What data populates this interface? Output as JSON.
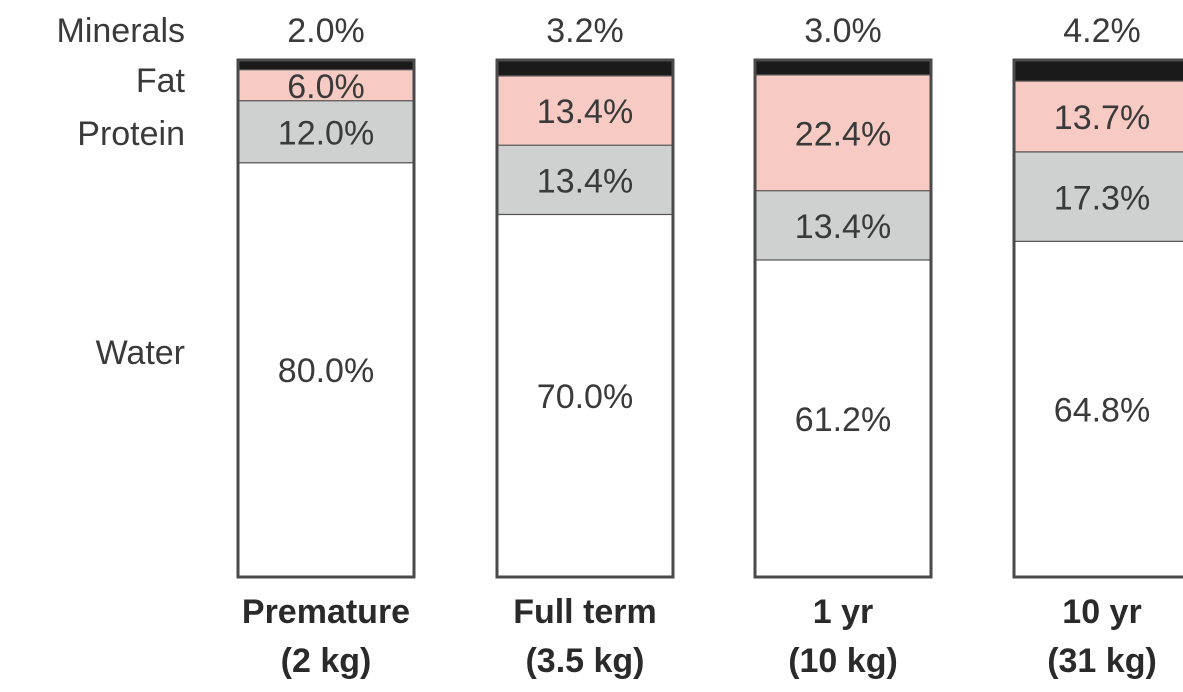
{
  "chart_data": {
    "type": "bar",
    "stacked": true,
    "normalized": true,
    "title": "",
    "xlabel": "",
    "ylabel": "",
    "ylim": [
      0,
      100
    ],
    "grid": false,
    "categories": [
      {
        "name": "Premature",
        "weight": "(2 kg)"
      },
      {
        "name": "Full term",
        "weight": "(3.5 kg)"
      },
      {
        "name": "1 yr",
        "weight": "(10 kg)"
      },
      {
        "name": "10 yr",
        "weight": "(31 kg)"
      }
    ],
    "series": [
      {
        "name": "Minerals",
        "color": "#1a1a1a",
        "values": [
          2.0,
          3.2,
          3.0,
          4.2
        ],
        "labels": [
          "2.0%",
          "3.2%",
          "3.0%",
          "4.2%"
        ]
      },
      {
        "name": "Fat",
        "color": "#f7cbc4",
        "values": [
          6.0,
          13.4,
          22.4,
          13.7
        ],
        "labels": [
          "6.0%",
          "13.4%",
          "22.4%",
          "13.7%"
        ]
      },
      {
        "name": "Protein",
        "color": "#cfd0d0",
        "values": [
          12.0,
          13.4,
          13.4,
          17.3
        ],
        "labels": [
          "12.0%",
          "13.4%",
          "13.4%",
          "17.3%"
        ]
      },
      {
        "name": "Water",
        "color": "#ffffff",
        "values": [
          80.0,
          70.0,
          61.2,
          64.8
        ],
        "labels": [
          "80.0%",
          "70.0%",
          "61.2%",
          "64.8%"
        ]
      }
    ]
  }
}
